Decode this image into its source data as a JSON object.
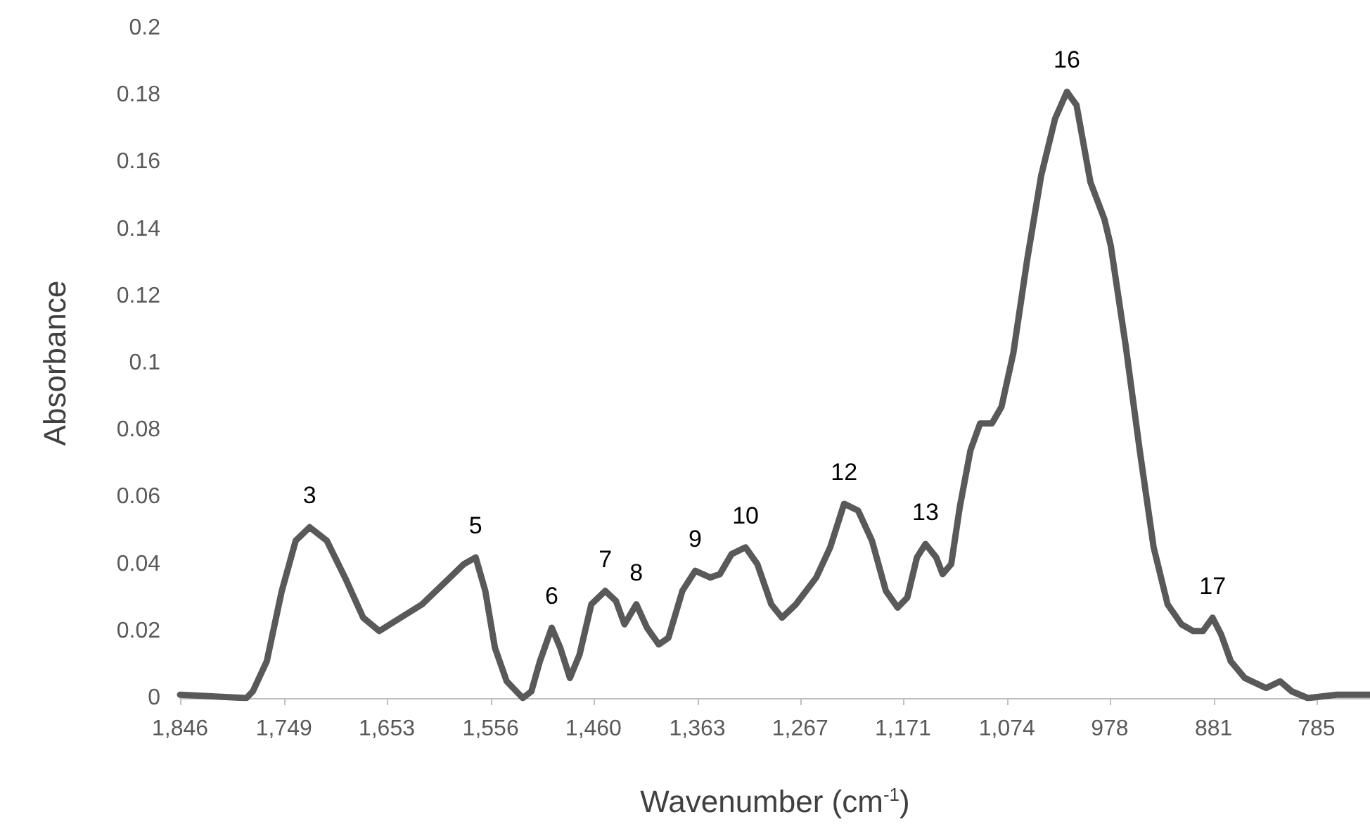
{
  "chart_data": {
    "type": "line",
    "xlabel": "Wavenumber (cm$^{-1}$)",
    "ylabel": "Absorbance",
    "x": [
      1846,
      1784,
      1778,
      1765,
      1751,
      1738,
      1725,
      1709,
      1692,
      1675,
      1660,
      1640,
      1620,
      1607,
      1594,
      1581,
      1570,
      1561,
      1552,
      1541,
      1526,
      1518,
      1510,
      1499,
      1491,
      1482,
      1473,
      1462,
      1449,
      1439,
      1431,
      1420,
      1410,
      1399,
      1390,
      1377,
      1365,
      1351,
      1342,
      1331,
      1318,
      1307,
      1294,
      1284,
      1271,
      1252,
      1239,
      1226,
      1213,
      1200,
      1187,
      1176,
      1167,
      1158,
      1150,
      1140,
      1134,
      1126,
      1118,
      1108,
      1099,
      1088,
      1079,
      1068,
      1055,
      1042,
      1029,
      1018,
      1009,
      996,
      983,
      977,
      963,
      950,
      937,
      924,
      911,
      900,
      891,
      882,
      874,
      865,
      852,
      832,
      819,
      808,
      793,
      766,
      735
    ],
    "series": [
      {
        "color": "#595959",
        "values": [
          0.001,
          0,
          0.002,
          0.011,
          0.032,
          0.047,
          0.051,
          0.047,
          0.036,
          0.024,
          0.02,
          0.024,
          0.028,
          0.032,
          0.036,
          0.04,
          0.042,
          0.032,
          0.015,
          0.005,
          0,
          0.002,
          0.011,
          0.021,
          0.015,
          0.006,
          0.013,
          0.028,
          0.032,
          0.029,
          0.022,
          0.028,
          0.021,
          0.016,
          0.018,
          0.032,
          0.038,
          0.036,
          0.037,
          0.043,
          0.045,
          0.04,
          0.028,
          0.024,
          0.028,
          0.036,
          0.045,
          0.058,
          0.056,
          0.047,
          0.032,
          0.027,
          0.03,
          0.042,
          0.046,
          0.042,
          0.037,
          0.04,
          0.057,
          0.074,
          0.082,
          0.082,
          0.087,
          0.103,
          0.131,
          0.156,
          0.173,
          0.181,
          0.177,
          0.154,
          0.143,
          0.135,
          0.105,
          0.074,
          0.045,
          0.028,
          0.022,
          0.02,
          0.02,
          0.024,
          0.019,
          0.011,
          0.006,
          0.003,
          0.005,
          0.002,
          0,
          0.001,
          0.001
        ]
      }
    ],
    "xlim": [
      1846,
      735
    ],
    "xticks": [
      {
        "value": 1846,
        "label": "1,846"
      },
      {
        "value": 1749,
        "label": "1,749"
      },
      {
        "value": 1653,
        "label": "1,653"
      },
      {
        "value": 1556,
        "label": "1,556"
      },
      {
        "value": 1460,
        "label": "1,460"
      },
      {
        "value": 1363,
        "label": "1,363"
      },
      {
        "value": 1267,
        "label": "1,267"
      },
      {
        "value": 1171,
        "label": "1,171"
      },
      {
        "value": 1074,
        "label": "1,074"
      },
      {
        "value": 978,
        "label": "978"
      },
      {
        "value": 881,
        "label": "881"
      },
      {
        "value": 785,
        "label": "785"
      }
    ],
    "ylim": [
      0,
      0.2
    ],
    "yticks": [
      0,
      0.02,
      0.04,
      0.06,
      0.08,
      0.1,
      0.12,
      0.14,
      0.16,
      0.18,
      0.2
    ],
    "annotations": [
      {
        "text": "3",
        "x": 1725,
        "y": 0.051
      },
      {
        "text": "5",
        "x": 1570,
        "y": 0.042
      },
      {
        "text": "6",
        "x": 1499,
        "y": 0.021
      },
      {
        "text": "7",
        "x": 1449,
        "y": 0.032
      },
      {
        "text": "8",
        "x": 1420,
        "y": 0.028
      },
      {
        "text": "9",
        "x": 1365,
        "y": 0.038
      },
      {
        "text": "10",
        "x": 1318,
        "y": 0.045
      },
      {
        "text": "12",
        "x": 1226,
        "y": 0.058
      },
      {
        "text": "13",
        "x": 1150,
        "y": 0.046
      },
      {
        "text": "16",
        "x": 1018,
        "y": 0.181
      },
      {
        "text": "17",
        "x": 882,
        "y": 0.024
      }
    ],
    "grid": false,
    "marker": "none",
    "line_style": "solid"
  }
}
